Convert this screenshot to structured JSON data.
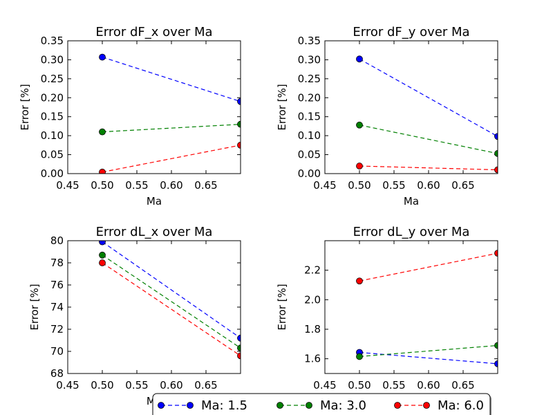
{
  "legend": {
    "location": "bottom-center",
    "entries": [
      "Ma: 1.5",
      "Ma: 3.0",
      "Ma: 6.0"
    ]
  },
  "colors": {
    "Ma: 1.5": "#0000ff",
    "Ma: 3.0": "#008000",
    "Ma: 6.0": "#ff0000"
  },
  "chart_data": [
    {
      "type": "line",
      "title": "Error dF_x over Ma",
      "xlabel": "Ma",
      "ylabel": "Error [%]",
      "xlim": [
        0.45,
        0.7
      ],
      "ylim": [
        0.0,
        0.35
      ],
      "xticks": [
        0.45,
        0.5,
        0.55,
        0.6,
        0.65
      ],
      "xtick_labels": [
        "0.45",
        "0.50",
        "0.55",
        "0.60",
        "0.65"
      ],
      "yticks": [
        0.0,
        0.05,
        0.1,
        0.15,
        0.2,
        0.25,
        0.3,
        0.35
      ],
      "ytick_labels": [
        "0.00",
        "0.05",
        "0.10",
        "0.15",
        "0.20",
        "0.25",
        "0.30",
        "0.35"
      ],
      "x": [
        0.5,
        0.7
      ],
      "series": [
        {
          "name": "Ma: 1.5",
          "values": [
            0.307,
            0.19
          ]
        },
        {
          "name": "Ma: 3.0",
          "values": [
            0.11,
            0.13
          ]
        },
        {
          "name": "Ma: 6.0",
          "values": [
            0.004,
            0.075
          ]
        }
      ]
    },
    {
      "type": "line",
      "title": "Error dF_y over Ma",
      "xlabel": "Ma",
      "ylabel": "Error [%]",
      "xlim": [
        0.45,
        0.7
      ],
      "ylim": [
        0.0,
        0.35
      ],
      "xticks": [
        0.45,
        0.5,
        0.55,
        0.6,
        0.65
      ],
      "xtick_labels": [
        "0.45",
        "0.50",
        "0.55",
        "0.60",
        "0.65"
      ],
      "yticks": [
        0.0,
        0.05,
        0.1,
        0.15,
        0.2,
        0.25,
        0.3,
        0.35
      ],
      "ytick_labels": [
        "0.00",
        "0.05",
        "0.10",
        "0.15",
        "0.20",
        "0.25",
        "0.30",
        "0.35"
      ],
      "x": [
        0.5,
        0.7
      ],
      "series": [
        {
          "name": "Ma: 1.5",
          "values": [
            0.302,
            0.098
          ]
        },
        {
          "name": "Ma: 3.0",
          "values": [
            0.128,
            0.053
          ]
        },
        {
          "name": "Ma: 6.0",
          "values": [
            0.02,
            0.01
          ]
        }
      ]
    },
    {
      "type": "line",
      "title": "Error dL_x over Ma",
      "xlabel": "Ma",
      "ylabel": "Error [%]",
      "xlim": [
        0.45,
        0.7
      ],
      "ylim": [
        68,
        80
      ],
      "xticks": [
        0.45,
        0.5,
        0.55,
        0.6,
        0.65
      ],
      "xtick_labels": [
        "0.45",
        "0.50",
        "0.55",
        "0.60",
        "0.65"
      ],
      "yticks": [
        68,
        70,
        72,
        74,
        76,
        78,
        80
      ],
      "ytick_labels": [
        "68",
        "70",
        "72",
        "74",
        "76",
        "78",
        "80"
      ],
      "x": [
        0.5,
        0.7
      ],
      "series": [
        {
          "name": "Ma: 1.5",
          "values": [
            79.9,
            71.2
          ]
        },
        {
          "name": "Ma: 3.0",
          "values": [
            78.7,
            70.3
          ]
        },
        {
          "name": "Ma: 6.0",
          "values": [
            78.0,
            69.6
          ]
        }
      ]
    },
    {
      "type": "line",
      "title": "Error dL_y over Ma",
      "xlabel": "Ma",
      "ylabel": "Error [%]",
      "xlim": [
        0.45,
        0.7
      ],
      "ylim": [
        1.5,
        2.4
      ],
      "xticks": [
        0.45,
        0.5,
        0.55,
        0.6,
        0.65
      ],
      "xtick_labels": [
        "0.45",
        "0.50",
        "0.55",
        "0.60",
        "0.65"
      ],
      "yticks": [
        1.6,
        1.8,
        2.0,
        2.2
      ],
      "ytick_labels": [
        "1.6",
        "1.8",
        "2.0",
        "2.2"
      ],
      "x": [
        0.5,
        0.7
      ],
      "series": [
        {
          "name": "Ma: 1.5",
          "values": [
            1.643,
            1.566
          ]
        },
        {
          "name": "Ma: 3.0",
          "values": [
            1.615,
            1.69
          ]
        },
        {
          "name": "Ma: 6.0",
          "values": [
            2.127,
            2.315
          ]
        }
      ]
    }
  ]
}
